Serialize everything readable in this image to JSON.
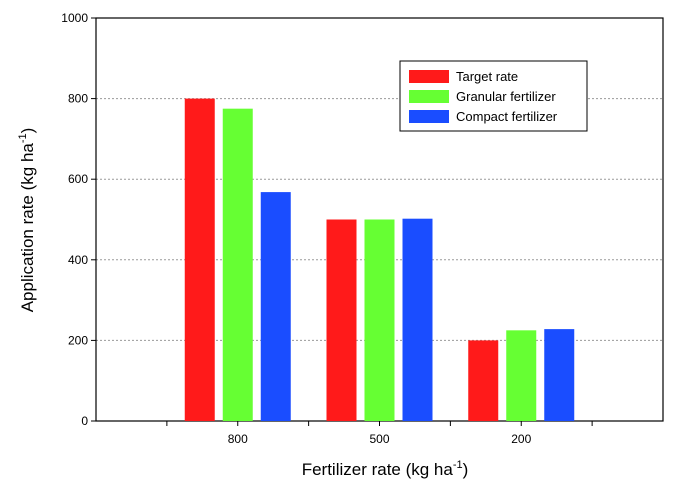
{
  "chart_data": {
    "type": "bar",
    "categories": [
      "800",
      "500",
      "200"
    ],
    "series": [
      {
        "name": "Target rate",
        "values": [
          800,
          500,
          200
        ],
        "color": "#ff1a1a"
      },
      {
        "name": "Granular fertilizer",
        "values": [
          775,
          500,
          225
        ],
        "color": "#66ff33"
      },
      {
        "name": "Compact fertilizer",
        "values": [
          568,
          502,
          228
        ],
        "color": "#1a4dff"
      }
    ],
    "xlabel": "Fertilizer rate (kg ha",
    "xlabel_sup": "-1",
    "xlabel_end": ")",
    "ylabel": "Application rate (kg ha",
    "ylabel_sup": "-1",
    "ylabel_end": ")",
    "yticks": [
      0,
      200,
      400,
      600,
      800,
      1000
    ],
    "ylim": [
      0,
      1000
    ],
    "grid": true,
    "legend_position": "top-right"
  }
}
